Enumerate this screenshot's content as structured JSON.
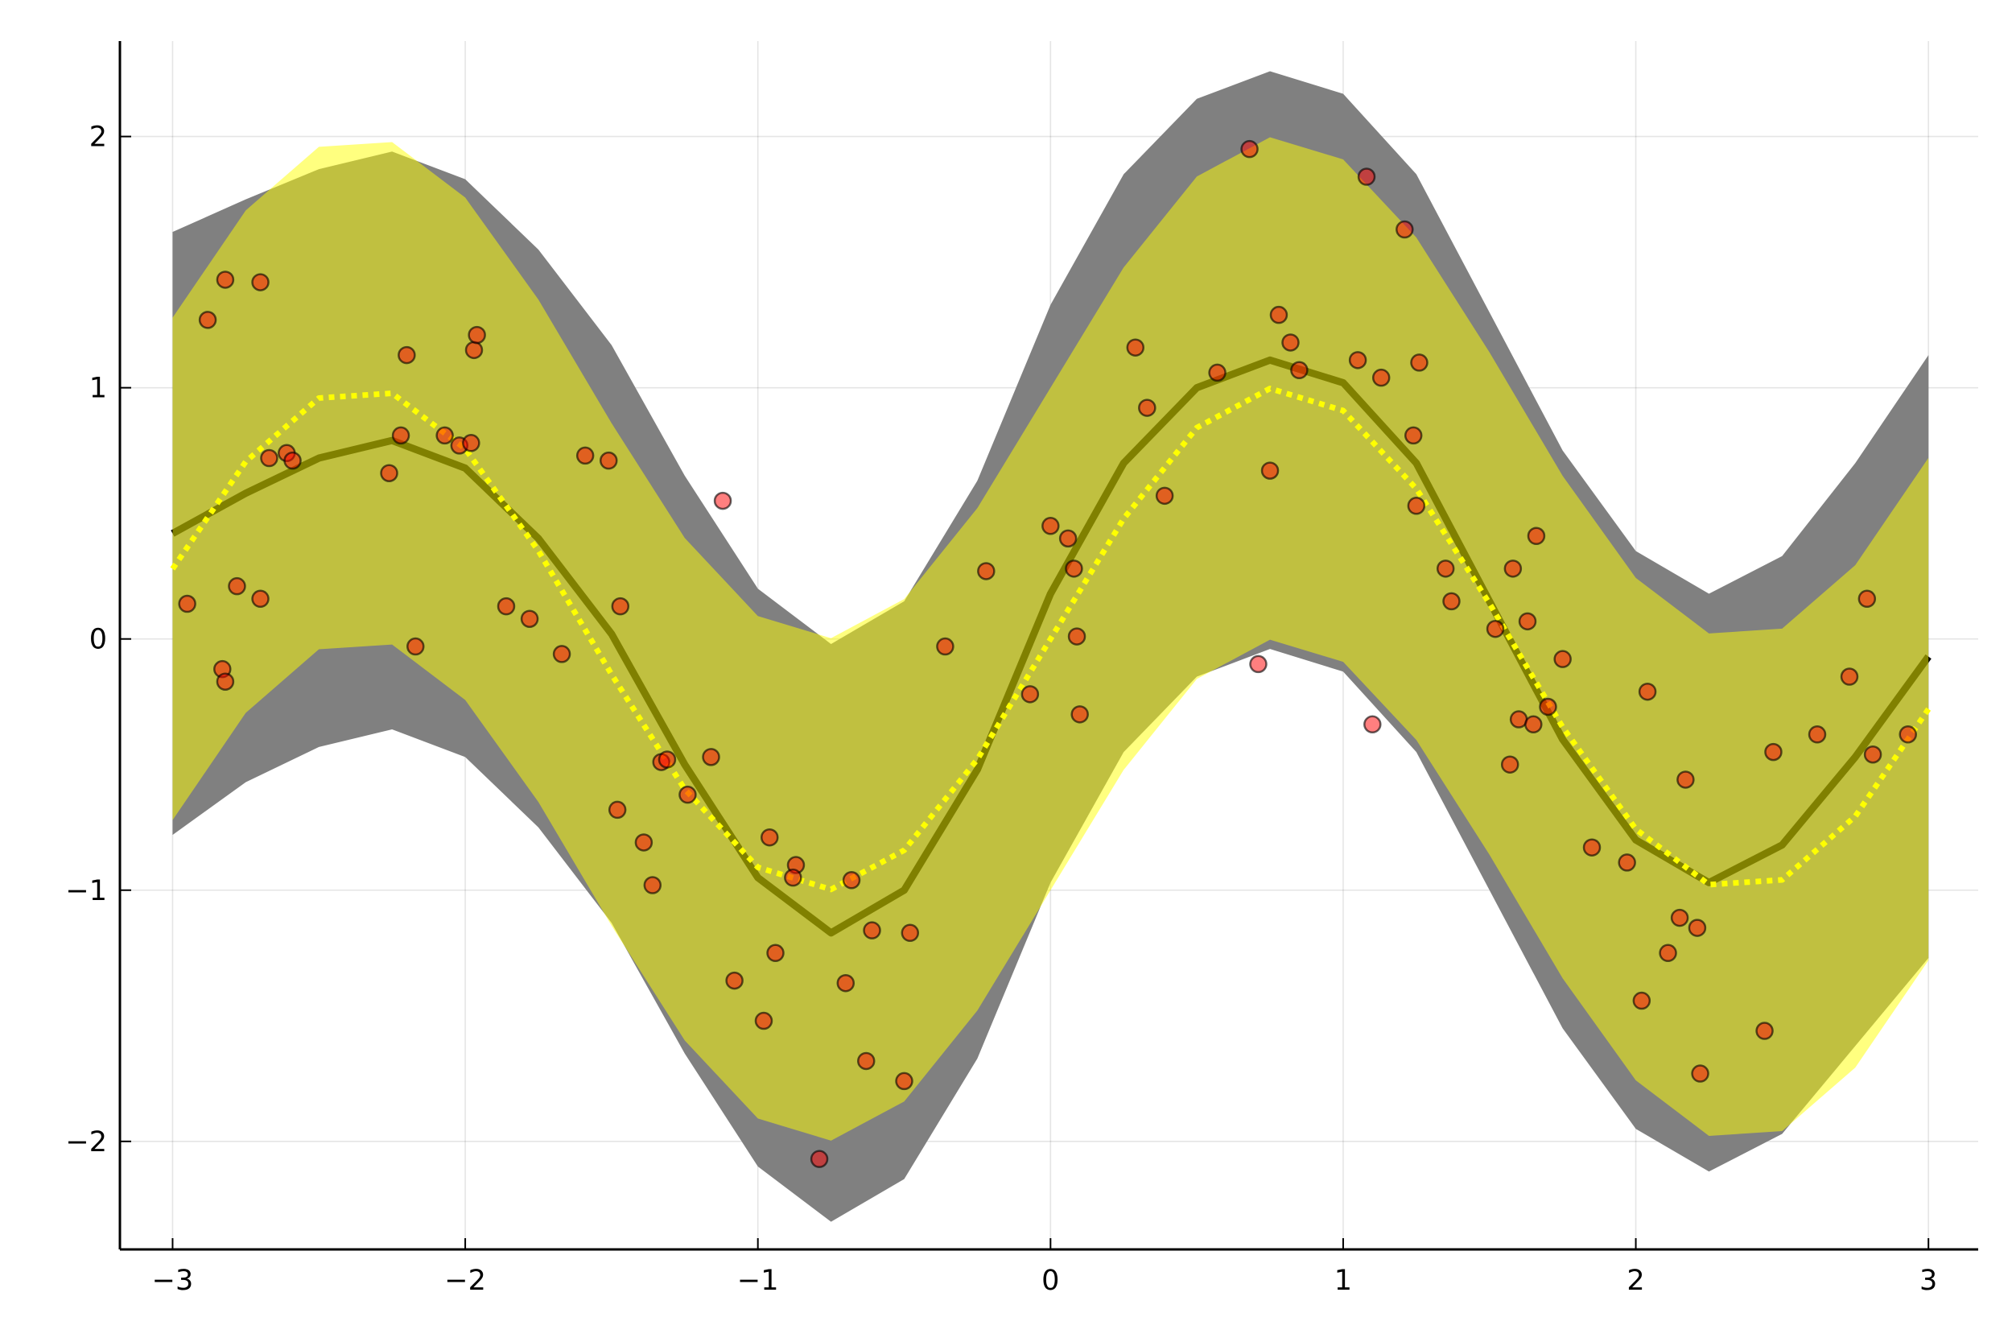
{
  "chart_data": {
    "type": "line",
    "xlim": [
      -3.18,
      3.17
    ],
    "ylim": [
      -2.43,
      2.38
    ],
    "xticks": [
      {
        "value": -3,
        "label": "−3"
      },
      {
        "value": -2,
        "label": "−2"
      },
      {
        "value": -1,
        "label": "−1"
      },
      0,
      1,
      2,
      3
    ],
    "yticks": [
      {
        "value": -2,
        "label": "−2"
      },
      {
        "value": -1,
        "label": "−1"
      },
      0,
      1,
      2
    ],
    "grid": true,
    "x": [
      -3,
      -2.75,
      -2.5,
      -2.25,
      -2,
      -1.75,
      -1.5,
      -1.25,
      -1,
      -0.75,
      -0.5,
      -0.25,
      0,
      0.25,
      0.5,
      0.75,
      1,
      1.25,
      1.5,
      1.75,
      2,
      2.25,
      2.5,
      2.75,
      3
    ],
    "series": [
      {
        "type": "band",
        "color": "#808080",
        "opacity": 1,
        "upper": [
          1.62,
          1.75,
          1.87,
          1.94,
          1.83,
          1.55,
          1.17,
          0.65,
          0.2,
          -0.02,
          0.15,
          0.63,
          1.33,
          1.85,
          2.15,
          2.26,
          2.17,
          1.85,
          1.3,
          0.75,
          0.35,
          0.18,
          0.33,
          0.7,
          1.13
        ],
        "lower": [
          -0.78,
          -0.57,
          -0.43,
          -0.36,
          -0.47,
          -0.75,
          -1.13,
          -1.65,
          -2.1,
          -2.32,
          -2.15,
          -1.67,
          -0.97,
          -0.45,
          -0.15,
          -0.04,
          -0.13,
          -0.45,
          -1.0,
          -1.55,
          -1.95,
          -2.12,
          -1.97,
          -1.62,
          -1.27
        ]
      },
      {
        "type": "line",
        "color": "#000000",
        "style": "solid",
        "values": [
          0.42,
          0.58,
          0.72,
          0.79,
          0.68,
          0.4,
          0.02,
          -0.5,
          -0.95,
          -1.17,
          -1.0,
          -0.52,
          0.18,
          0.7,
          1.0,
          1.11,
          1.02,
          0.7,
          0.15,
          -0.4,
          -0.8,
          -0.97,
          -0.82,
          -0.47,
          -0.07
        ]
      },
      {
        "type": "band",
        "color": "#ffff00",
        "opacity": 0.5,
        "upper": [
          1.279,
          1.706,
          1.959,
          1.978,
          1.757,
          1.351,
          0.859,
          0.402,
          0.091,
          0.003,
          0.159,
          0.521,
          1,
          1.479,
          1.841,
          1.997,
          1.909,
          1.598,
          1.141,
          0.649,
          0.243,
          0.022,
          0.041,
          0.294,
          0.721
        ],
        "lower": [
          -0.721,
          -0.294,
          -0.041,
          -0.022,
          -0.243,
          -0.649,
          -1.141,
          -1.598,
          -1.909,
          -1.997,
          -1.841,
          -1.479,
          -1,
          -0.521,
          -0.159,
          -0.003,
          -0.091,
          -0.402,
          -0.859,
          -1.351,
          -1.757,
          -1.978,
          -1.959,
          -1.706,
          -1.279
        ]
      },
      {
        "type": "line",
        "color": "#ffff00",
        "style": "dotted",
        "values": [
          0.279,
          0.706,
          0.959,
          0.978,
          0.757,
          0.351,
          -0.141,
          -0.598,
          -0.909,
          -0.997,
          -0.841,
          -0.479,
          0,
          0.479,
          0.841,
          0.997,
          0.909,
          0.598,
          0.141,
          -0.351,
          -0.757,
          -0.978,
          -0.959,
          -0.706,
          -0.279
        ]
      },
      {
        "type": "scatter",
        "color": "#ff0000",
        "opacity": 0.5,
        "x": [
          -2.95,
          -2.88,
          -2.82,
          -2.7,
          -2.83,
          -2.82,
          -2.78,
          -2.7,
          -2.67,
          -2.61,
          -2.59,
          -2.26,
          -2.22,
          -2.2,
          -2.17,
          -2.07,
          -2.02,
          -1.98,
          -1.97,
          -1.96,
          -1.86,
          -1.78,
          -1.67,
          -1.59,
          -1.51,
          -1.47,
          -1.48,
          -1.39,
          -1.36,
          -1.33,
          -1.31,
          -1.24,
          -1.16,
          -1.12,
          -1.08,
          -0.98,
          -0.96,
          -0.94,
          -0.87,
          -0.88,
          -0.79,
          -0.7,
          -0.68,
          -0.63,
          -0.61,
          -0.5,
          -0.48,
          -0.36,
          -0.22,
          -0.07,
          0.0,
          0.06,
          0.08,
          0.09,
          0.1,
          0.29,
          0.33,
          0.39,
          0.57,
          0.68,
          0.71,
          0.75,
          0.78,
          0.82,
          0.85,
          1.05,
          1.08,
          1.1,
          1.13,
          1.21,
          1.24,
          1.25,
          1.26,
          1.35,
          1.37,
          1.52,
          1.57,
          1.58,
          1.6,
          1.63,
          1.65,
          1.66,
          1.7,
          1.75,
          1.85,
          1.97,
          2.02,
          2.04,
          2.11,
          2.15,
          2.17,
          2.21,
          2.22,
          2.44,
          2.47,
          2.62,
          2.73,
          2.79,
          2.81,
          2.93
        ],
        "values": [
          0.14,
          1.27,
          1.43,
          1.42,
          -0.12,
          -0.17,
          0.21,
          0.16,
          0.72,
          0.74,
          0.71,
          0.66,
          0.81,
          1.13,
          -0.03,
          0.81,
          0.77,
          0.78,
          1.15,
          1.21,
          0.13,
          0.08,
          -0.06,
          0.73,
          0.71,
          0.13,
          -0.68,
          -0.81,
          -0.98,
          -0.49,
          -0.48,
          -0.62,
          -0.47,
          0.55,
          -1.36,
          -1.52,
          -0.79,
          -1.25,
          -0.9,
          -0.95,
          -2.07,
          -1.37,
          -0.96,
          -1.68,
          -1.16,
          -1.76,
          -1.17,
          -0.03,
          0.27,
          -0.22,
          0.45,
          0.4,
          0.28,
          0.01,
          -0.3,
          1.16,
          0.92,
          0.57,
          1.06,
          1.95,
          -0.1,
          0.67,
          1.29,
          1.18,
          1.07,
          1.11,
          1.84,
          -0.34,
          1.04,
          1.63,
          0.81,
          0.53,
          1.1,
          0.28,
          0.15,
          0.04,
          -0.5,
          0.28,
          -0.32,
          0.07,
          -0.34,
          0.41,
          -0.27,
          -0.08,
          -0.83,
          -0.89,
          -1.44,
          -0.21,
          -1.25,
          -1.11,
          -0.56,
          -1.15,
          -1.73,
          -1.56,
          -0.45,
          -0.38,
          -0.15,
          0.16,
          -0.46,
          -0.38
        ]
      }
    ]
  }
}
